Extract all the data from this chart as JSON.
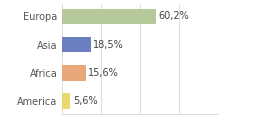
{
  "categories": [
    "Europa",
    "Asia",
    "Africa",
    "America"
  ],
  "values": [
    60.2,
    18.5,
    15.6,
    5.6
  ],
  "labels": [
    "60,2%",
    "18,5%",
    "15,6%",
    "5,6%"
  ],
  "bar_colors": [
    "#b5c99a",
    "#6b7fc0",
    "#e8a87c",
    "#e8d870"
  ],
  "background_color": "#ffffff",
  "xlim": [
    0,
    100
  ],
  "bar_height": 0.55,
  "label_fontsize": 7,
  "tick_fontsize": 7,
  "grid_color": "#cccccc",
  "grid_positions": [
    0,
    25,
    50,
    75,
    100
  ]
}
